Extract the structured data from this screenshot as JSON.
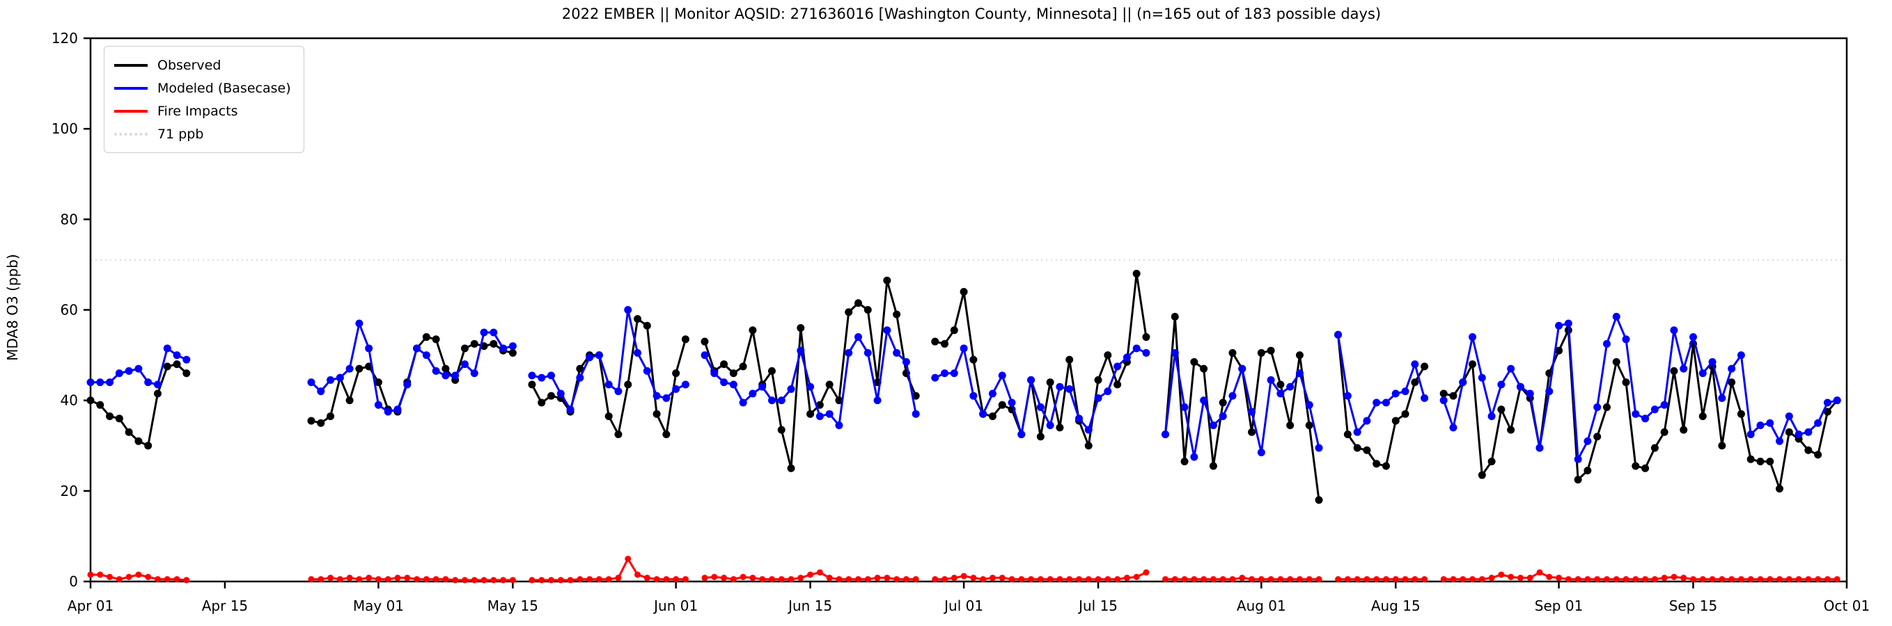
{
  "title": "2022 EMBER || Monitor AQSID: 271636016 [Washington County, Minnesota] || (n=165 out of 183 possible days)",
  "axes": {
    "ylabel": "MDA8 O3 (ppb)",
    "yticks": [
      0,
      20,
      40,
      60,
      80,
      100,
      120
    ],
    "xtick_labels": [
      "Apr 01",
      "Apr 15",
      "May 01",
      "May 15",
      "Jun 01",
      "Jun 15",
      "Jul 01",
      "Jul 15",
      "Aug 01",
      "Aug 15",
      "Sep 01",
      "Sep 15",
      "Oct 01"
    ],
    "xtick_day_index": [
      0,
      14,
      30,
      44,
      61,
      75,
      91,
      105,
      122,
      136,
      153,
      167,
      183
    ]
  },
  "legend": [
    {
      "label": "Observed",
      "color": "#000000",
      "style": "solid"
    },
    {
      "label": "Modeled (Basecase)",
      "color": "#0000ff",
      "style": "solid"
    },
    {
      "label": "Fire Impacts",
      "color": "#ff0000",
      "style": "solid"
    },
    {
      "label": "71 ppb",
      "color": "#d9d9d9",
      "style": "dotted"
    }
  ],
  "chart_data": {
    "type": "line",
    "title": "2022 EMBER || Monitor AQSID: 271636016 [Washington County, Minnesota] || (n=165 out of 183 possible days)",
    "xlabel": "",
    "ylabel": "MDA8 O3 (ppb)",
    "ylim": [
      0,
      120
    ],
    "xlim_days": [
      "2022-04-01",
      "2022-10-01"
    ],
    "grid": false,
    "legend_position": "upper left",
    "threshold_ppb": 71,
    "n_days_observed": 165,
    "n_days_possible": 183,
    "dates": [
      "04-01",
      "04-02",
      "04-03",
      "04-04",
      "04-05",
      "04-06",
      "04-07",
      "04-08",
      "04-09",
      "04-10",
      "04-11",
      "04-12",
      "04-13",
      "04-14",
      "04-15",
      "04-16",
      "04-17",
      "04-18",
      "04-19",
      "04-20",
      "04-21",
      "04-22",
      "04-23",
      "04-24",
      "04-25",
      "04-26",
      "04-27",
      "04-28",
      "04-29",
      "04-30",
      "05-01",
      "05-02",
      "05-03",
      "05-04",
      "05-05",
      "05-06",
      "05-07",
      "05-08",
      "05-09",
      "05-10",
      "05-11",
      "05-12",
      "05-13",
      "05-14",
      "05-15",
      "05-16",
      "05-17",
      "05-18",
      "05-19",
      "05-20",
      "05-21",
      "05-22",
      "05-23",
      "05-24",
      "05-25",
      "05-26",
      "05-27",
      "05-28",
      "05-29",
      "05-30",
      "05-31",
      "06-01",
      "06-02",
      "06-03",
      "06-04",
      "06-05",
      "06-06",
      "06-07",
      "06-08",
      "06-09",
      "06-10",
      "06-11",
      "06-12",
      "06-13",
      "06-14",
      "06-15",
      "06-16",
      "06-17",
      "06-18",
      "06-19",
      "06-20",
      "06-21",
      "06-22",
      "06-23",
      "06-24",
      "06-25",
      "06-26",
      "06-27",
      "06-28",
      "06-29",
      "06-30",
      "07-01",
      "07-02",
      "07-03",
      "07-04",
      "07-05",
      "07-06",
      "07-07",
      "07-08",
      "07-09",
      "07-10",
      "07-11",
      "07-12",
      "07-13",
      "07-14",
      "07-15",
      "07-16",
      "07-17",
      "07-18",
      "07-19",
      "07-20",
      "07-21",
      "07-22",
      "07-23",
      "07-24",
      "07-25",
      "07-26",
      "07-27",
      "07-28",
      "07-29",
      "07-30",
      "07-31",
      "08-01",
      "08-02",
      "08-03",
      "08-04",
      "08-05",
      "08-06",
      "08-07",
      "08-08",
      "08-09",
      "08-10",
      "08-11",
      "08-12",
      "08-13",
      "08-14",
      "08-15",
      "08-16",
      "08-17",
      "08-18",
      "08-19",
      "08-20",
      "08-21",
      "08-22",
      "08-23",
      "08-24",
      "08-25",
      "08-26",
      "08-27",
      "08-28",
      "08-29",
      "08-30",
      "08-31",
      "09-01",
      "09-02",
      "09-03",
      "09-04",
      "09-05",
      "09-06",
      "09-07",
      "09-08",
      "09-09",
      "09-10",
      "09-11",
      "09-12",
      "09-13",
      "09-14",
      "09-15",
      "09-16",
      "09-17",
      "09-18",
      "09-19",
      "09-20",
      "09-21",
      "09-22",
      "09-23",
      "09-24",
      "09-25",
      "09-26",
      "09-27",
      "09-28",
      "09-29",
      "09-30"
    ],
    "series": [
      {
        "name": "Observed",
        "color": "#000000",
        "values": [
          40,
          39,
          36.5,
          36,
          33,
          31,
          30,
          41.5,
          47.5,
          48,
          46,
          null,
          null,
          null,
          null,
          null,
          null,
          null,
          null,
          null,
          null,
          null,
          null,
          35.5,
          35,
          36.5,
          45,
          40,
          47,
          47.5,
          44,
          38,
          37.5,
          44,
          51.5,
          54,
          53.5,
          47,
          44.5,
          51.5,
          52.5,
          52,
          52.5,
          51,
          50.5,
          null,
          43.5,
          39.5,
          41,
          40.5,
          37.5,
          47,
          50,
          50,
          36.5,
          32.5,
          43.5,
          58,
          56.5,
          37,
          32.5,
          46,
          53.5,
          null,
          53,
          46.5,
          48,
          46,
          47.5,
          55.5,
          43.5,
          46.5,
          33.5,
          25,
          56,
          37,
          39,
          43.5,
          40,
          59.5,
          61.5,
          60,
          44,
          66.5,
          59,
          46,
          41,
          null,
          53,
          52.5,
          55.5,
          64,
          49,
          37,
          36.5,
          39,
          38,
          32.5,
          44.5,
          32,
          44,
          34,
          49,
          35.5,
          30,
          44.5,
          50,
          43.5,
          48.5,
          68,
          54,
          null,
          32.5,
          58.5,
          26.5,
          48.5,
          47,
          25.5,
          39.5,
          50.5,
          47,
          33,
          50.5,
          51,
          43.5,
          34.5,
          50,
          34.5,
          18,
          null,
          54.5,
          32.5,
          29.5,
          29,
          26,
          25.5,
          35.5,
          37,
          44,
          47.5,
          null,
          41.5,
          41,
          44,
          48,
          23.5,
          26.5,
          38,
          33.5,
          43,
          40.5,
          29.5,
          46,
          51,
          55.5,
          22.5,
          24.5,
          32,
          38.5,
          48.5,
          44,
          25.5,
          25,
          29.5,
          33,
          46.5,
          33.5,
          52.5,
          36.5,
          47.5,
          30,
          44,
          37,
          27,
          26.5,
          26.5,
          20.5,
          33,
          31.5,
          29,
          28,
          37.5,
          40
        ]
      },
      {
        "name": "Modeled (Basecase)",
        "color": "#0000ff",
        "values": [
          44,
          44,
          44,
          46,
          46.5,
          47,
          44,
          43.5,
          51.5,
          50,
          49,
          null,
          null,
          null,
          null,
          null,
          null,
          null,
          null,
          null,
          null,
          null,
          null,
          44,
          42,
          44.5,
          45,
          47,
          57,
          51.5,
          39,
          37.5,
          38,
          43.5,
          51.5,
          50,
          46.5,
          45.5,
          45.5,
          48,
          46,
          55,
          55,
          51.5,
          52,
          null,
          45.5,
          45,
          45.5,
          41.5,
          38,
          45,
          49.5,
          50,
          43.5,
          42,
          60,
          50.5,
          46.5,
          41,
          40.5,
          42.5,
          43.5,
          null,
          50,
          46,
          44,
          43.5,
          39.5,
          41.5,
          43,
          40,
          40,
          42.5,
          51,
          43,
          36.5,
          37,
          34.5,
          50.5,
          54,
          50.5,
          40,
          55.5,
          50.5,
          48.5,
          37,
          null,
          45,
          46,
          46,
          51.5,
          41,
          37,
          41.5,
          45.5,
          39.5,
          32.5,
          44.5,
          38.5,
          34.5,
          43,
          42.5,
          36,
          33.5,
          40.5,
          42,
          47.5,
          49.5,
          51.5,
          50.5,
          null,
          32.5,
          50.5,
          38.5,
          27.5,
          40,
          34.5,
          36.5,
          41,
          47,
          37.5,
          28.5,
          44.5,
          41.5,
          43,
          46,
          39,
          29.5,
          null,
          54.5,
          41,
          33,
          35.5,
          39.5,
          39.5,
          41.5,
          42,
          48,
          40.5,
          null,
          40,
          34,
          44,
          54,
          45,
          36.5,
          43.5,
          47,
          43,
          41.5,
          29.5,
          42,
          56.5,
          57,
          27,
          31,
          38.5,
          52.5,
          58.5,
          53.5,
          37,
          36,
          38,
          39,
          55.5,
          47,
          54,
          46,
          48.5,
          40.5,
          47,
          50,
          32.5,
          34.5,
          35,
          31,
          36.5,
          32.5,
          33,
          35,
          39.5,
          40
        ]
      },
      {
        "name": "Fire Impacts",
        "color": "#ff0000",
        "values": [
          1.5,
          1.5,
          1,
          0.5,
          1,
          1.5,
          1,
          0.5,
          0.5,
          0.5,
          0.3,
          null,
          null,
          null,
          null,
          null,
          null,
          null,
          null,
          null,
          null,
          null,
          null,
          0.5,
          0.5,
          0.8,
          0.5,
          0.8,
          0.5,
          0.8,
          0.5,
          0.5,
          0.8,
          0.8,
          0.5,
          0.5,
          0.5,
          0.5,
          0.3,
          0.3,
          0.3,
          0.3,
          0.3,
          0.3,
          0.3,
          null,
          0.3,
          0.3,
          0.3,
          0.3,
          0.3,
          0.5,
          0.5,
          0.5,
          0.5,
          0.8,
          5,
          1.5,
          0.8,
          0.5,
          0.5,
          0.5,
          0.5,
          null,
          0.8,
          1,
          0.8,
          0.5,
          1,
          0.8,
          0.5,
          0.5,
          0.5,
          0.5,
          0.8,
          1.5,
          2,
          0.8,
          0.5,
          0.5,
          0.5,
          0.5,
          0.8,
          0.8,
          0.5,
          0.5,
          0.5,
          null,
          0.5,
          0.5,
          0.8,
          1.2,
          0.8,
          0.5,
          0.8,
          0.8,
          0.5,
          0.5,
          0.5,
          0.5,
          0.5,
          0.5,
          0.5,
          0.5,
          0.5,
          0.5,
          0.5,
          0.5,
          0.8,
          1,
          2,
          null,
          0.5,
          0.5,
          0.5,
          0.5,
          0.5,
          0.5,
          0.5,
          0.5,
          0.8,
          0.5,
          0.5,
          0.5,
          0.5,
          0.5,
          0.5,
          0.5,
          0.5,
          null,
          0.5,
          0.5,
          0.5,
          0.5,
          0.5,
          0.5,
          0.5,
          0.5,
          0.5,
          0.5,
          null,
          0.5,
          0.5,
          0.5,
          0.5,
          0.5,
          0.8,
          1.5,
          1,
          0.8,
          0.8,
          2,
          1,
          0.8,
          0.5,
          0.5,
          0.5,
          0.5,
          0.5,
          0.5,
          0.5,
          0.5,
          0.5,
          0.5,
          0.8,
          1,
          0.8,
          0.5,
          0.5,
          0.5,
          0.5,
          0.5,
          0.5,
          0.5,
          0.5,
          0.5,
          0.5,
          0.5,
          0.5,
          0.5,
          0.5,
          0.5,
          0.5
        ]
      }
    ]
  }
}
